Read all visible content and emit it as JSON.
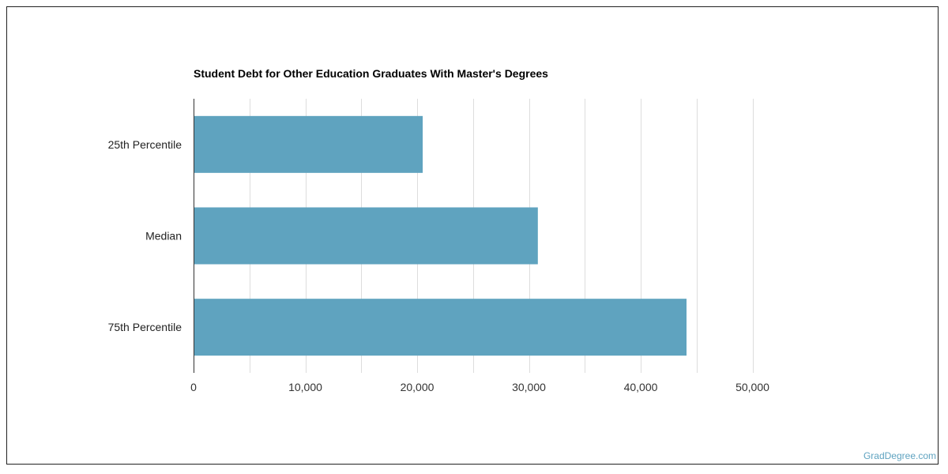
{
  "chart_data": {
    "type": "bar",
    "orientation": "horizontal",
    "title": "Student Debt for Other Education Graduates With Master's Degrees",
    "categories": [
      "25th Percentile",
      "Median",
      "75th Percentile"
    ],
    "values": [
      20500,
      30800,
      44100
    ],
    "xlim": [
      0,
      50000
    ],
    "x_ticks": [
      0,
      10000,
      20000,
      30000,
      40000,
      50000
    ],
    "x_tick_labels": [
      "0",
      "10,000",
      "20,000",
      "30,000",
      "40,000",
      "50,000"
    ],
    "xlabel": "",
    "ylabel": "",
    "grid": true,
    "bar_color": "#5fa3bf",
    "grid_color": "#dddddd"
  },
  "watermark": "GradDegree.com"
}
